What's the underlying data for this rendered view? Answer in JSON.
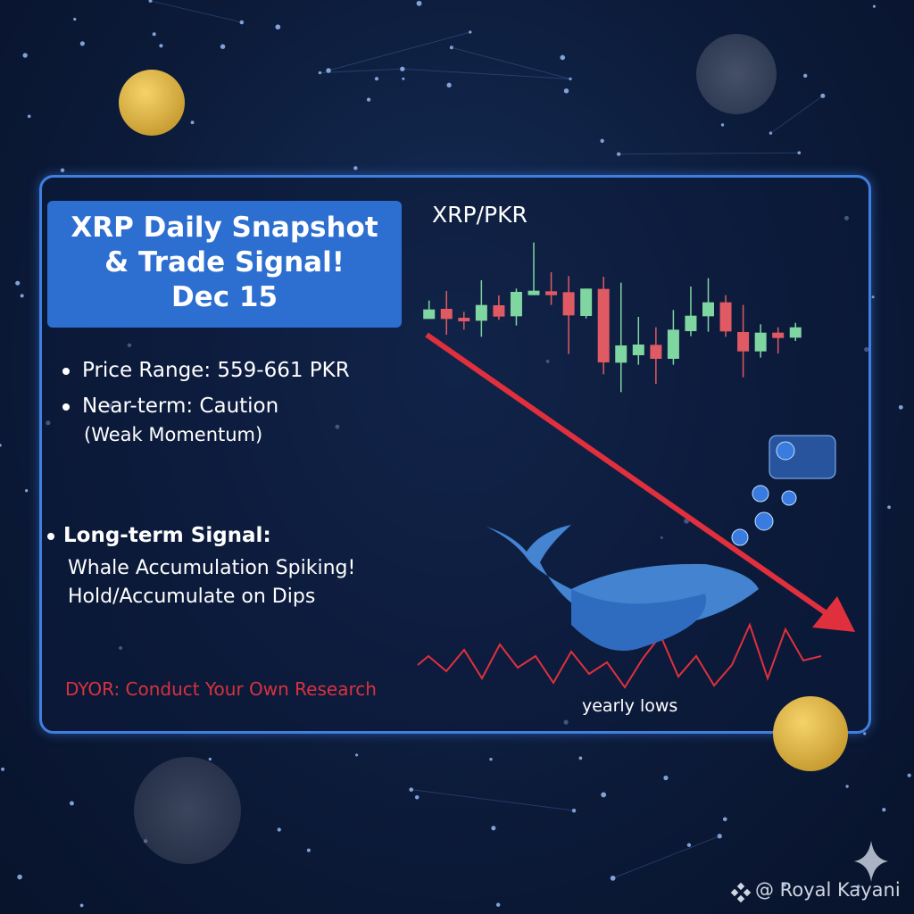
{
  "title_box": {
    "line1": "XRP Daily Snapshot",
    "line2": "& Trade Signal!",
    "line3": "Dec 15"
  },
  "bullets": {
    "price_range": "Price Range: 559-661 PKR",
    "near_term": "Near-term: Caution",
    "near_term_detail": "(Weak Momentum)",
    "long_term": "Long-term Signal:",
    "long_term_line1": "Whale Accumulation Spiking!",
    "long_term_line2": "Hold/Accumulate on Dips"
  },
  "disclaimer": "DYOR: Conduct Your Own Research",
  "chart_label": "yearly lows",
  "watermark": "@ Royal Kayani",
  "colors": {
    "accent": "#2d6fd0",
    "up": "#7fd6a0",
    "down": "#e05a63",
    "arrow": "#e0303d"
  },
  "chart_data": {
    "type": "candlestick",
    "title": "XRP/PKR",
    "trend": "down",
    "candles": [
      {
        "o": 28.8,
        "h": 35.0,
        "l": 28.8,
        "c": 32.0,
        "dir": "up"
      },
      {
        "o": 32.2,
        "h": 38.2,
        "l": 23.5,
        "c": 28.8,
        "dir": "down"
      },
      {
        "o": 29.2,
        "h": 31.2,
        "l": 25.2,
        "c": 28.0,
        "dir": "down"
      },
      {
        "o": 28.2,
        "h": 41.8,
        "l": 22.8,
        "c": 33.5,
        "dir": "up"
      },
      {
        "o": 33.4,
        "h": 36.7,
        "l": 28.5,
        "c": 29.6,
        "dir": "down"
      },
      {
        "o": 29.7,
        "h": 39.0,
        "l": 26.6,
        "c": 37.9,
        "dir": "up"
      },
      {
        "o": 36.8,
        "h": 54.5,
        "l": 36.8,
        "c": 38.3,
        "dir": "up"
      },
      {
        "o": 38.1,
        "h": 44.5,
        "l": 33.5,
        "c": 36.8,
        "dir": "down"
      },
      {
        "o": 37.8,
        "h": 43.2,
        "l": 17.0,
        "c": 30.0,
        "dir": "down"
      },
      {
        "o": 29.8,
        "h": 39.0,
        "l": 29.0,
        "c": 39.0,
        "dir": "up"
      },
      {
        "o": 38.9,
        "h": 43.0,
        "l": 10.2,
        "c": 14.2,
        "dir": "down"
      },
      {
        "o": 14.1,
        "h": 41.0,
        "l": 4.2,
        "c": 19.9,
        "dir": "up"
      },
      {
        "o": 16.6,
        "h": 29.5,
        "l": 13.4,
        "c": 20.2,
        "dir": "up"
      },
      {
        "o": 20.1,
        "h": 26.0,
        "l": 7.0,
        "c": 15.4,
        "dir": "down"
      },
      {
        "o": 15.4,
        "h": 31.8,
        "l": 13.4,
        "c": 25.2,
        "dir": "up"
      },
      {
        "o": 24.7,
        "h": 39.7,
        "l": 23.0,
        "c": 29.9,
        "dir": "up"
      },
      {
        "o": 29.7,
        "h": 42.5,
        "l": 24.5,
        "c": 34.4,
        "dir": "up"
      },
      {
        "o": 34.4,
        "h": 36.8,
        "l": 22.8,
        "c": 24.6,
        "dir": "down"
      },
      {
        "o": 24.4,
        "h": 33.5,
        "l": 9.2,
        "c": 17.9,
        "dir": "down"
      },
      {
        "o": 17.9,
        "h": 27.0,
        "l": 15.8,
        "c": 24.2,
        "dir": "up"
      },
      {
        "o": 24.2,
        "h": 26.0,
        "l": 17.2,
        "c": 22.4,
        "dir": "down"
      },
      {
        "o": 22.5,
        "h": 27.5,
        "l": 21.4,
        "c": 26.0,
        "dir": "up"
      }
    ]
  }
}
